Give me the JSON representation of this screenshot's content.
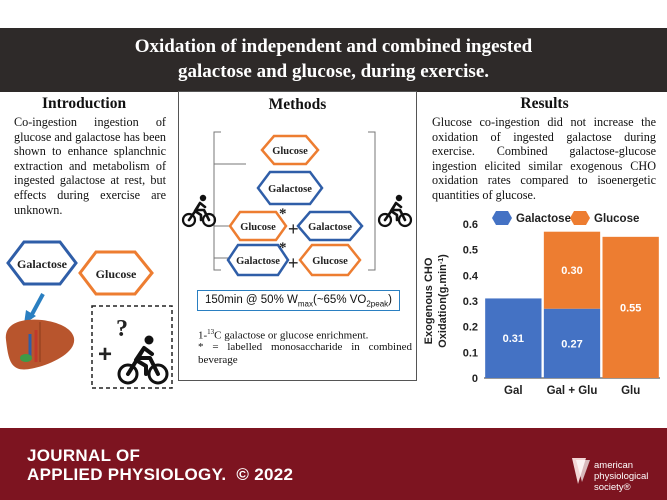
{
  "title": {
    "line1": "Oxidation of independent and combined ingested",
    "line2": "galactose and glucose, during exercise."
  },
  "introduction": {
    "heading": "Introduction",
    "text": "Co-ingestion ingestion of glucose and galactose has been shown to enhance splanchnic extraction and metabolism of ingested galactose at rest, but effects during exercise are unknown.",
    "hex_galactose": "Galactose",
    "hex_glucose": "Glucose",
    "question": "?",
    "plus": "+"
  },
  "methods": {
    "heading": "Methods",
    "arms": [
      {
        "left": "Glucose"
      },
      {
        "left": "Galactose"
      },
      {
        "left": "Glucose",
        "labelled": true,
        "right": "Galactose"
      },
      {
        "left": "Galactose",
        "labelled": true,
        "right": "Glucose"
      }
    ],
    "plus": "+",
    "star": "*",
    "exercise_prefix": "150min @ 50% W",
    "exercise_sub1": "max",
    "exercise_mid": "(~65% VO",
    "exercise_sub2": "2peak",
    "exercise_suffix": ")",
    "note1_pre": "1-",
    "note1_sup": "13",
    "note1_post": "C galactose or glucose enrichment.",
    "note2": "* = labelled monosaccharide in combined beverage"
  },
  "results": {
    "heading": "Results",
    "text": "Glucose co-ingestion did not increase the oxidation of ingested galactose during exercise. Combined galactose-glucose ingestion elicited similar exogenous CHO oxidation rates compared to isoenergetic quantities of glucose."
  },
  "colors": {
    "galactose": "#4472c4",
    "glucose": "#ed7d31",
    "title_bg": "#2e2a29",
    "footer_bg": "#7d1420"
  },
  "chart_data": {
    "type": "bar",
    "stacked": true,
    "categories": [
      "Gal",
      "Gal + Glu",
      "Glu"
    ],
    "series": [
      {
        "name": "Galactose",
        "color": "#4472c4",
        "values": [
          0.31,
          0.27,
          0
        ]
      },
      {
        "name": "Glucose",
        "color": "#ed7d31",
        "values": [
          0,
          0.3,
          0.55
        ]
      }
    ],
    "data_labels": [
      "0.31",
      "0.27",
      "0.30",
      "0.55"
    ],
    "ylabel_line1": "Exogenous CHO",
    "ylabel_line2": "Oxidation(g.min",
    "ylabel_sup": "-1",
    "ylabel_close": ")",
    "ylim": [
      0,
      0.6
    ],
    "yticks": [
      "0",
      "0.1",
      "0.2",
      "0.3",
      "0.4",
      "0.5",
      "0.6"
    ],
    "legend_position": "top",
    "grid": false
  },
  "footer": {
    "journal_line1": "JOURNAL OF",
    "journal_line2": "APPLIED PHYSIOLOGY.",
    "copyright": "© 2022",
    "society_line1": "american",
    "society_line2": "physiological",
    "society_line3": "society®"
  }
}
